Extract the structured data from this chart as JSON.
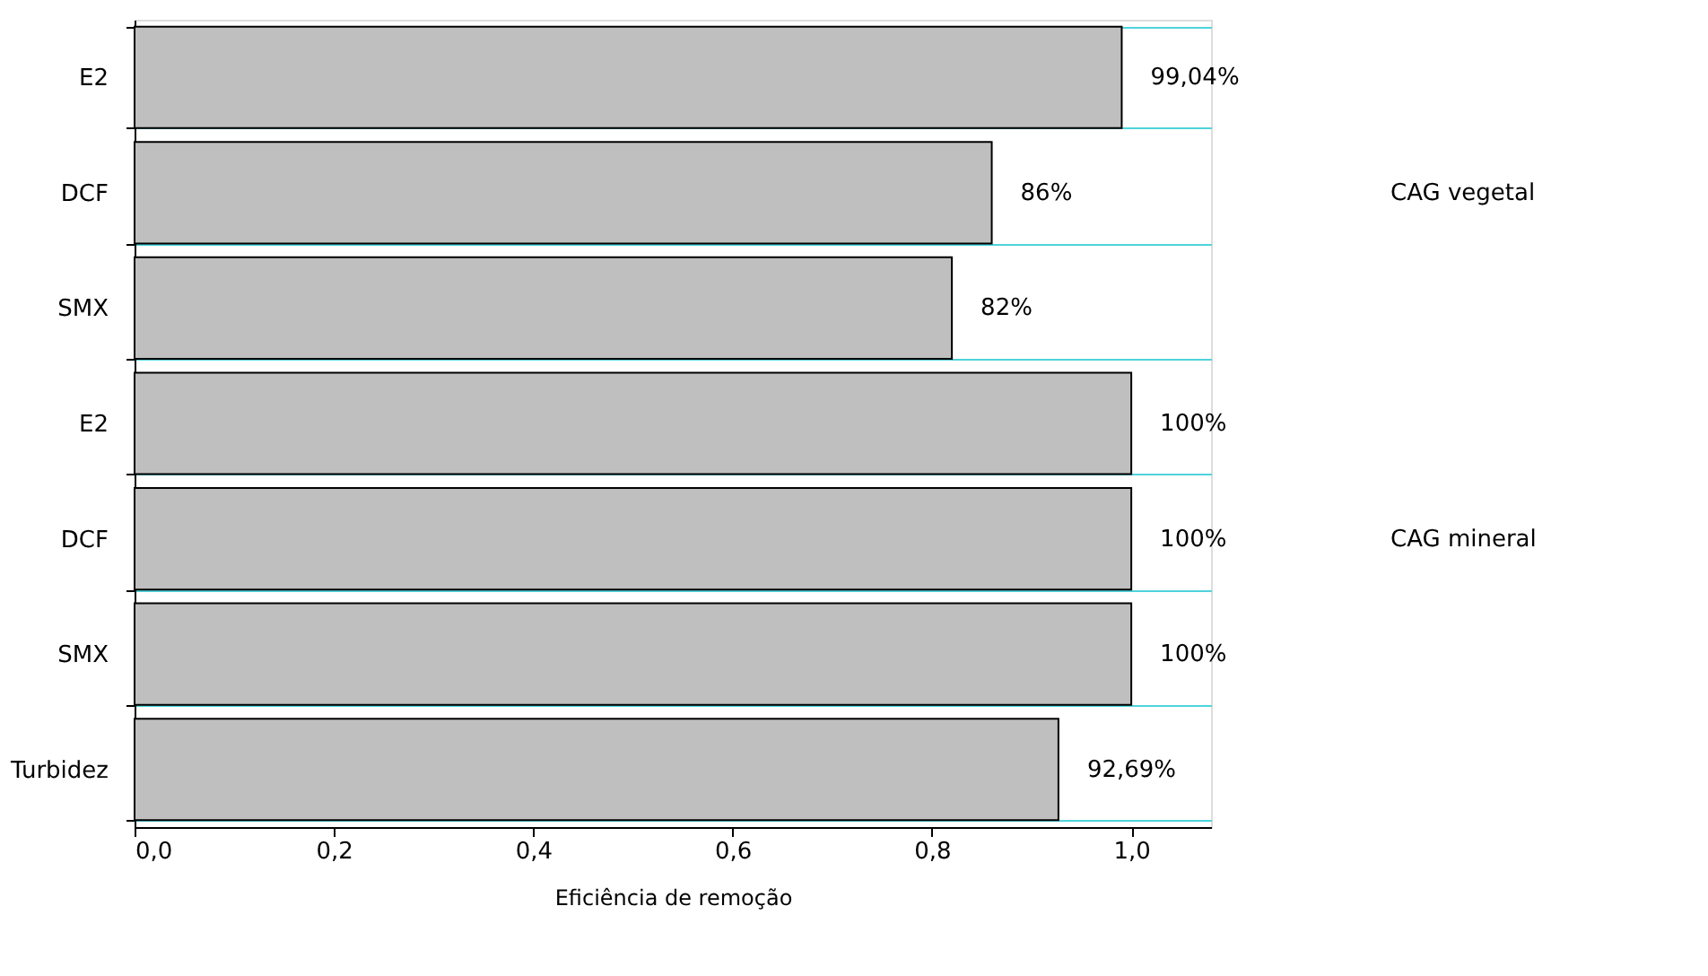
{
  "chart_data": {
    "type": "bar",
    "orientation": "horizontal",
    "xlabel": "Eficiência de remoção",
    "categories": [
      "E2",
      "DCF",
      "SMX",
      "E2",
      "DCF",
      "SMX",
      "Turbidez"
    ],
    "values": [
      0.9904,
      0.86,
      0.82,
      1.0,
      1.0,
      1.0,
      0.9269
    ],
    "value_labels": [
      "99,04%",
      "86%",
      "82%",
      "100%",
      "100%",
      "100%",
      "92,69%"
    ],
    "color": "#bfbfbf",
    "xlim": [
      0,
      1.08
    ],
    "xticks": [
      {
        "value": 0,
        "label": "0,0"
      },
      {
        "value": 0.2,
        "label": "0,2"
      },
      {
        "value": 0.4,
        "label": "0,4"
      },
      {
        "value": 0.6,
        "label": "0,6"
      },
      {
        "value": 0.8,
        "label": "0,8"
      },
      {
        "value": 1.0,
        "label": "1,0"
      }
    ],
    "grid": "y",
    "annotations": [
      "CAG vegetal",
      "CAG mineral"
    ]
  }
}
